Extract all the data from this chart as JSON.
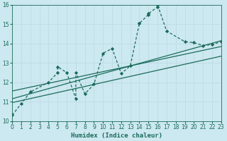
{
  "xlabel": "Humidex (Indice chaleur)",
  "bg_color": "#cce8f0",
  "grid_color": "#c0dce4",
  "line_color": "#1a6b5a",
  "xlim": [
    0,
    23
  ],
  "ylim": [
    10,
    16
  ],
  "xticks": [
    0,
    1,
    2,
    3,
    4,
    5,
    6,
    7,
    8,
    9,
    10,
    11,
    12,
    13,
    14,
    15,
    16,
    17,
    18,
    19,
    20,
    21,
    22,
    23
  ],
  "yticks": [
    10,
    11,
    12,
    13,
    14,
    15,
    16
  ],
  "curve_x": [
    0,
    1,
    2,
    4,
    5,
    5,
    6,
    7,
    7,
    8,
    9,
    10,
    11,
    12,
    13,
    14,
    14,
    15,
    15,
    16,
    16,
    17,
    19,
    20,
    21,
    22,
    23
  ],
  "curve_y": [
    10.3,
    10.9,
    11.5,
    12.0,
    12.5,
    12.8,
    12.5,
    11.15,
    12.5,
    11.4,
    11.9,
    13.5,
    13.75,
    12.45,
    12.85,
    15.05,
    15.05,
    15.5,
    15.55,
    15.9,
    16.0,
    14.65,
    14.1,
    14.05,
    13.9,
    13.95,
    14.1
  ],
  "reg_line1_x": [
    0,
    23
  ],
  "reg_line1_y": [
    11.15,
    14.15
  ],
  "reg_line2_x": [
    0,
    23
  ],
  "reg_line2_y": [
    11.55,
    13.85
  ],
  "reg_line3_x": [
    0,
    23
  ],
  "reg_line3_y": [
    10.95,
    13.35
  ]
}
